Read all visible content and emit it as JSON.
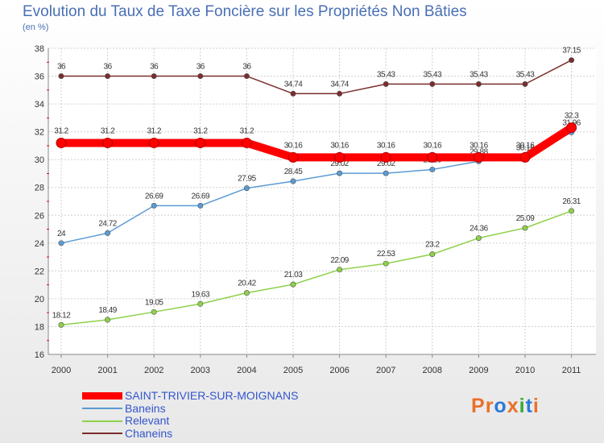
{
  "header": {
    "title": "Evolution du Taux de Taxe Foncière sur les Propriétés Non Bâties",
    "subtitle": "(en %)"
  },
  "logo": {
    "text": "Proxiti",
    "colors": [
      "#e8702a",
      "#e8702a",
      "#2a7ad8",
      "#e8702a",
      "#3aa832",
      "#2a7ad8",
      "#e8702a"
    ]
  },
  "chart_data": {
    "type": "line",
    "title": "Evolution du Taux de Taxe Foncière sur les Propriétés Non Bâties",
    "ylabel": "(en %)",
    "x": [
      "2000",
      "2001",
      "2002",
      "2003",
      "2004",
      "2005",
      "2006",
      "2007",
      "2008",
      "2009",
      "2010",
      "2011"
    ],
    "ylim": [
      16,
      38
    ],
    "yticks": [
      16,
      18,
      20,
      22,
      24,
      26,
      28,
      30,
      32,
      34,
      36,
      38
    ],
    "grid": true,
    "legend_position": "bottom-left",
    "series": [
      {
        "name": "SAINT-TRIVIER-SUR-MOIGNANS",
        "color": "#ff0000",
        "values": [
          31.2,
          31.2,
          31.2,
          31.2,
          31.2,
          30.16,
          30.16,
          30.16,
          30.16,
          30.16,
          30.16,
          32.3
        ],
        "labels": [
          "31.2",
          "31.2",
          "31.2",
          "31.2",
          "31.2",
          "30.16",
          "30.16",
          "30.16",
          "30.16",
          "30.16",
          "30.16",
          "32.3"
        ]
      },
      {
        "name": "Baneins",
        "color": "#5b9bd5",
        "values": [
          24,
          24.72,
          26.69,
          26.69,
          27.95,
          28.45,
          29.02,
          29.02,
          29.29,
          29.88,
          30.16,
          31.96
        ],
        "labels": [
          "24",
          "24.72",
          "26.69",
          "26.69",
          "27.95",
          "28.45",
          "29.02",
          "29.02",
          "29.29",
          "29.88",
          "30.16",
          "31.96"
        ]
      },
      {
        "name": "Relevant",
        "color": "#8ed14a",
        "values": [
          18.12,
          18.49,
          19.05,
          19.63,
          20.42,
          21.03,
          22.09,
          22.53,
          23.2,
          24.36,
          25.09,
          26.31
        ],
        "labels": [
          "18.12",
          "18.49",
          "19.05",
          "19.63",
          "20.42",
          "21.03",
          "22.09",
          "22.53",
          "23.2",
          "24.36",
          "25.09",
          "26.31"
        ]
      },
      {
        "name": "Chaneins",
        "color": "#7b2d2d",
        "values": [
          36,
          36,
          36,
          36,
          36,
          34.74,
          34.74,
          35.43,
          35.43,
          35.43,
          35.43,
          37.15
        ],
        "labels": [
          "36",
          "36",
          "36",
          "36",
          "36",
          "34.74",
          "34.74",
          "35.43",
          "35.43",
          "35.43",
          "35.43",
          "37.15"
        ]
      }
    ]
  }
}
